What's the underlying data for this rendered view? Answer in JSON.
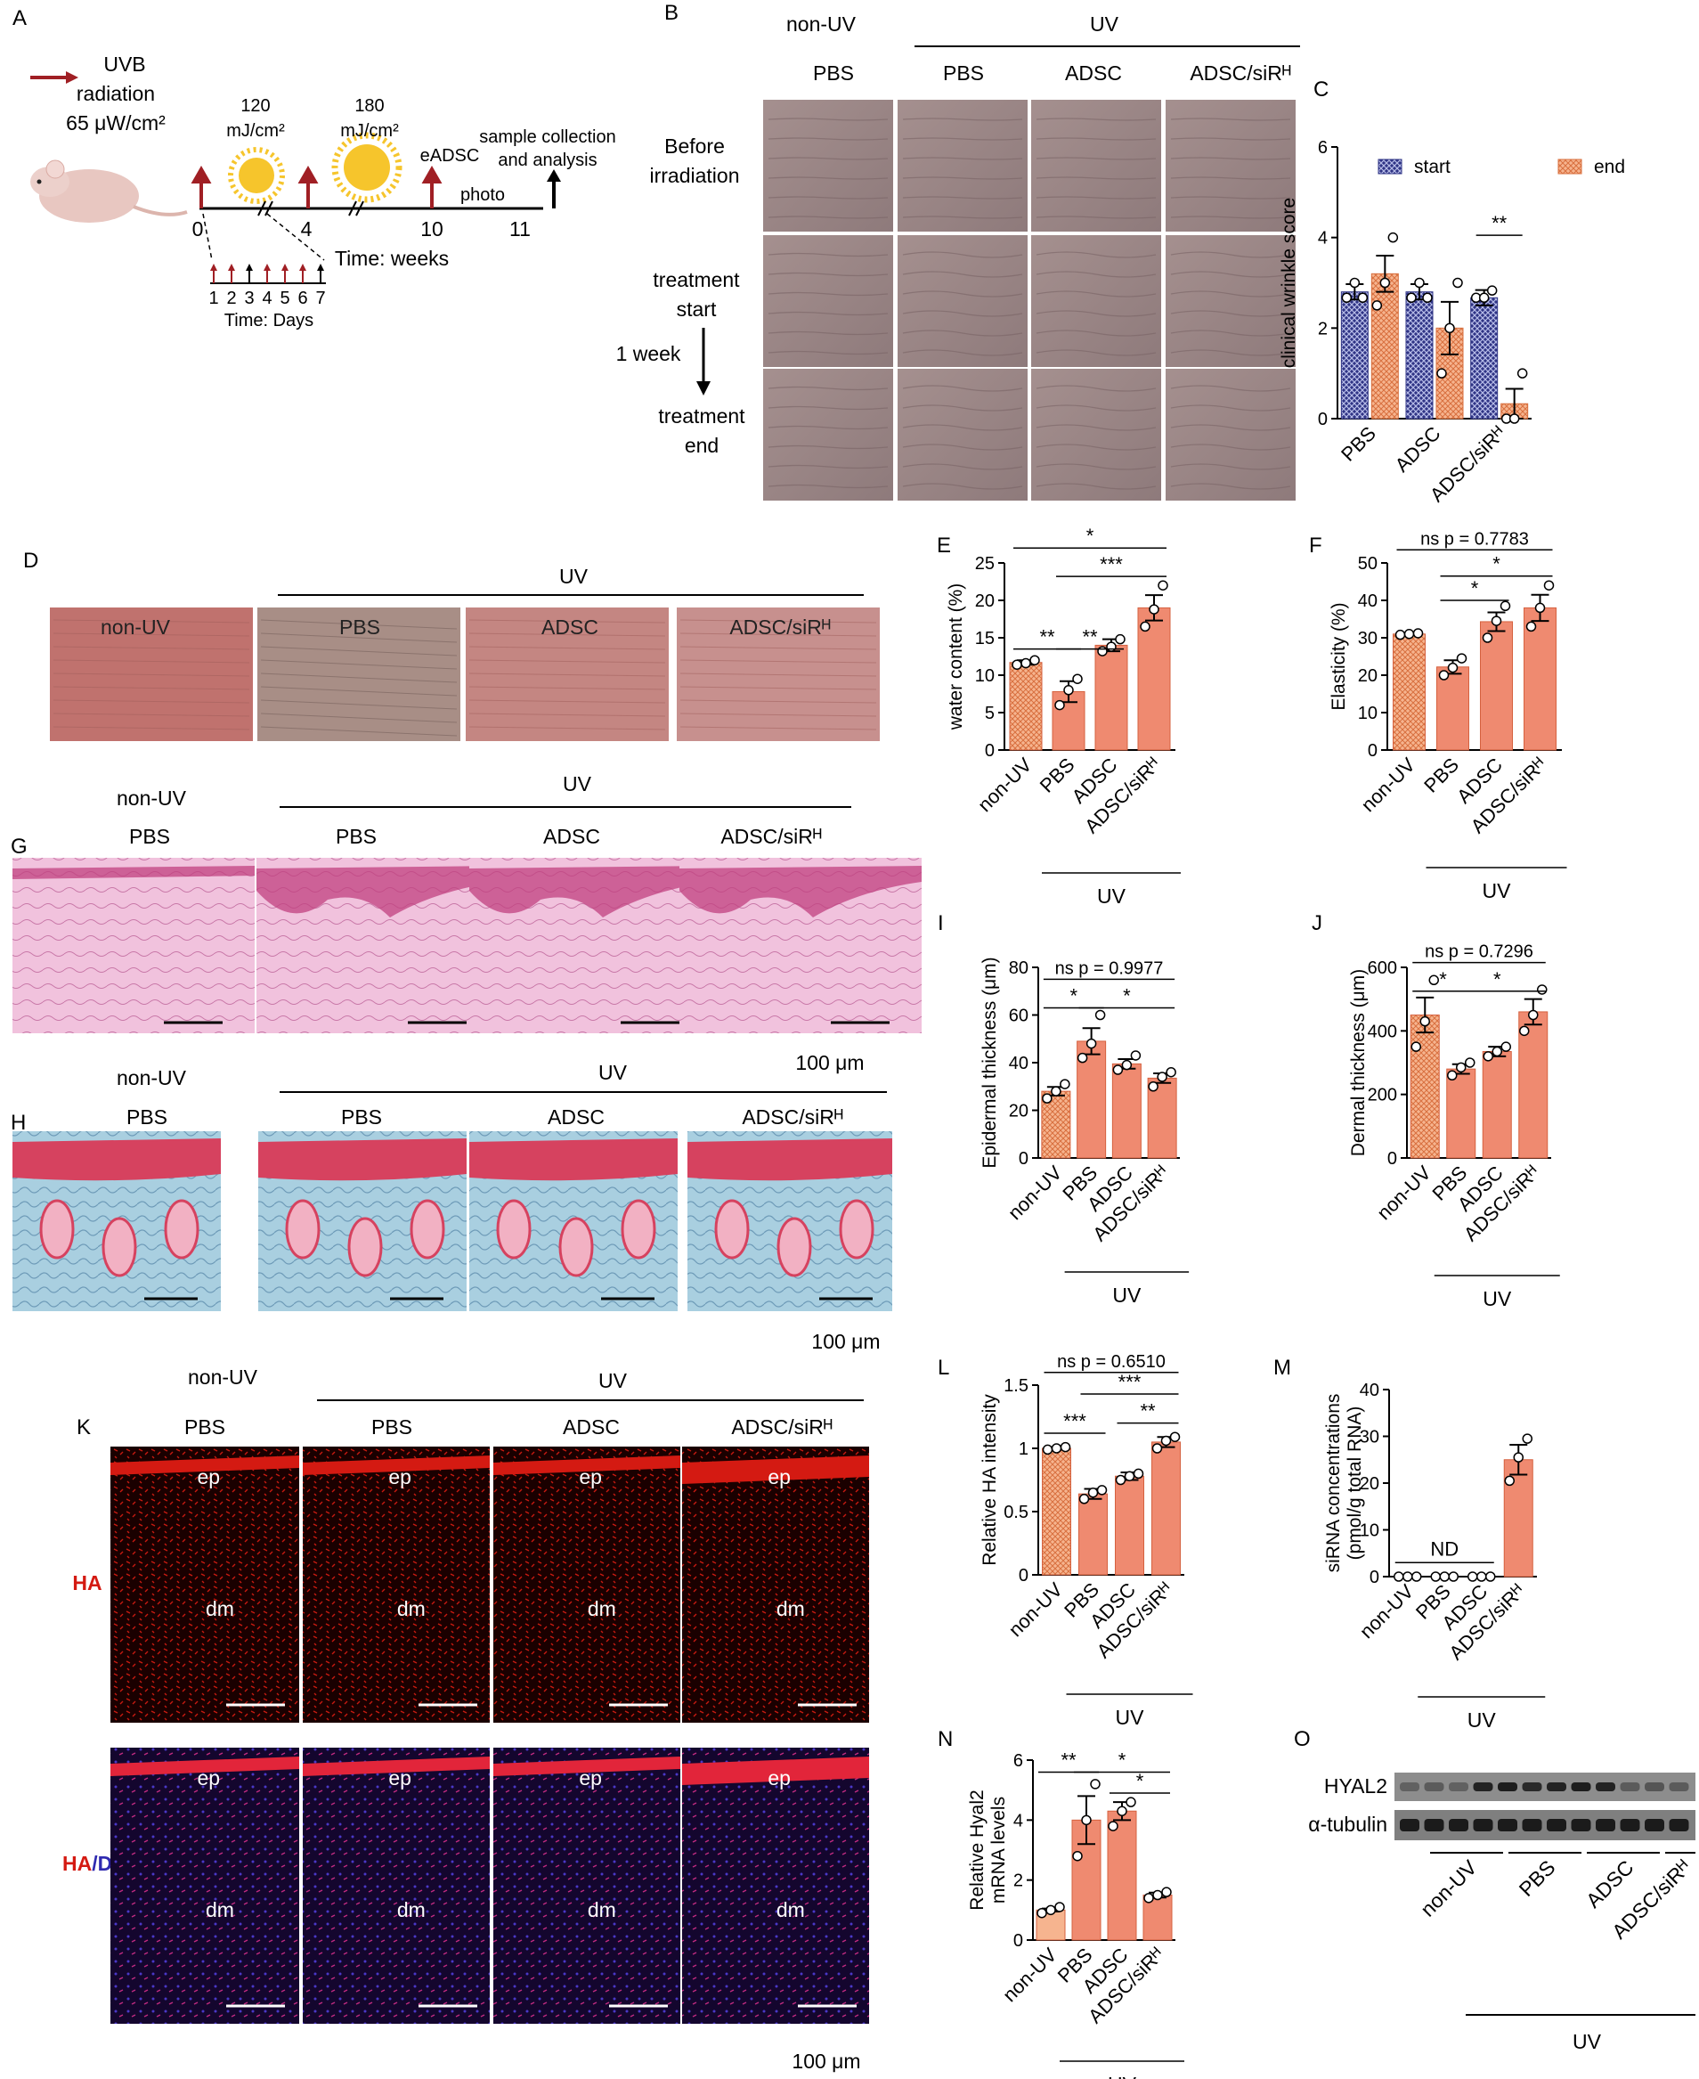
{
  "colors": {
    "salmon": "#ef8a70",
    "light_salmon": "#f6b48f",
    "navy": "#2f3485",
    "uv_arrow": "#a01f24",
    "sun": "#f6c52c",
    "skin": "#9f8b8c",
    "he_pink": "#e9a6cf",
    "he_edge": "#c0407f",
    "masson_blue": "#9fc6d8",
    "masson_red": "#d6425f",
    "fluor_red": "#d41a12",
    "dapi_blue": "#4a38c8"
  },
  "panel_labels": {
    "A": "A",
    "B": "B",
    "C": "C",
    "D": "D",
    "E": "E",
    "F": "F",
    "G": "G",
    "H": "H",
    "I": "I",
    "J": "J",
    "K": "K",
    "L": "L",
    "M": "M",
    "N": "N",
    "O": "O"
  },
  "panel_a": {
    "uvb_line1": "UVB",
    "uvb_line2": "radiation",
    "uvb_line3": "65 μW/cm²",
    "dose1_line1": "120",
    "dose1_line2": "mJ/cm²",
    "dose2_line1": "180",
    "dose2_line2": "mJ/cm²",
    "eadsc": "eADSC",
    "sample_line1": "sample collection",
    "sample_line2": "and analysis",
    "photo": "photo",
    "t0": "0",
    "t4": "4",
    "t10": "10",
    "t11": "11",
    "time_weeks": "Time: weeks",
    "days": [
      "1",
      "2",
      "3",
      "4",
      "5",
      "6",
      "7"
    ],
    "time_days": "Time: Days",
    "icons": [
      "mouse-icon",
      "sun-icon",
      "uv-arrow-icon"
    ]
  },
  "panel_b": {
    "non_uv": "non-UV",
    "uv": "UV",
    "cols": [
      "PBS",
      "PBS",
      "ADSC",
      "ADSC/siRᴴ"
    ],
    "rows": [
      {
        "line1": "Before",
        "line2": "irradiation"
      },
      {
        "line1": "treatment",
        "line2": "start"
      },
      {
        "line1": "treatment",
        "line2": "end"
      }
    ],
    "one_week": "1 week"
  },
  "panel_d": {
    "uv": "UV",
    "cols": [
      "non-UV",
      "PBS",
      "ADSC",
      "ADSC/siRᴴ"
    ]
  },
  "panel_g": {
    "non_uv": "non-UV",
    "uv": "UV",
    "cols": [
      "PBS",
      "PBS",
      "ADSC",
      "ADSC/siRᴴ"
    ],
    "scale": "100 μm"
  },
  "panel_h": {
    "non_uv": "non-UV",
    "uv": "UV",
    "cols": [
      "PBS",
      "PBS",
      "ADSC",
      "ADSC/siRᴴ"
    ],
    "scale": "100 μm"
  },
  "panel_k": {
    "non_uv": "non-UV",
    "uv": "UV",
    "cols": [
      "PBS",
      "PBS",
      "ADSC",
      "ADSC/siRᴴ"
    ],
    "row1": "HA",
    "row2_a": "HA",
    "row2_b": "/DAPI",
    "ep": "ep",
    "dm": "dm",
    "scale": "100 μm"
  },
  "panel_o": {
    "rows": [
      "HYAL2",
      "α-tubulin"
    ],
    "groups": [
      "non-UV",
      "PBS",
      "ADSC",
      "ADSC/siRᴴ"
    ],
    "uv": "UV"
  },
  "chart_data": [
    {
      "id": "C",
      "type": "bar",
      "ylabel": "clinical wrinkle score",
      "ylim": [
        0,
        6
      ],
      "yticks": [
        0,
        2,
        4,
        6
      ],
      "categories": [
        "PBS",
        "ADSC",
        "ADSC/siRᴴ"
      ],
      "series": [
        {
          "name": "start",
          "values": [
            2.8,
            2.8,
            2.67
          ],
          "errors": [
            0.17,
            0.17,
            0.17
          ],
          "points": [
            [
              2.67,
              3.0,
              2.67
            ],
            [
              2.67,
              3.0,
              2.67
            ],
            [
              2.67,
              2.67,
              2.83
            ]
          ]
        },
        {
          "name": "end",
          "values": [
            3.2,
            2.0,
            0.33
          ],
          "errors": [
            0.4,
            0.58,
            0.33
          ],
          "points": [
            [
              2.5,
              3.0,
              4.0
            ],
            [
              1.0,
              2.0,
              3.0
            ],
            [
              0.0,
              0.0,
              1.0
            ]
          ]
        }
      ],
      "annotations": [
        {
          "text": "**",
          "between": [
            2,
            2
          ]
        }
      ]
    },
    {
      "id": "E",
      "type": "bar",
      "ylabel": "water content (%)",
      "ylim": [
        0,
        25
      ],
      "yticks": [
        0,
        5,
        10,
        15,
        20,
        25
      ],
      "categories": [
        "non-UV",
        "PBS",
        "ADSC",
        "ADSC/siRᴴ"
      ],
      "values": [
        11.7,
        7.8,
        14.0,
        19.0
      ],
      "errors": [
        0.3,
        1.4,
        0.8,
        1.7
      ],
      "points": [
        [
          11.4,
          11.6,
          12.0
        ],
        [
          6.0,
          8.0,
          9.5
        ],
        [
          13.2,
          13.8,
          14.8
        ],
        [
          16.5,
          18.8,
          22.0
        ]
      ],
      "bracket_label": "UV",
      "annotations": [
        {
          "text": "**",
          "from": 0,
          "to": 1,
          "y": 13.5
        },
        {
          "text": "**",
          "from": 1,
          "to": 2,
          "y": 13.5
        },
        {
          "text": "***",
          "from": 1,
          "to": 3,
          "y": 23.2
        },
        {
          "text": "*",
          "from": 0,
          "to": 3,
          "y": 27.0
        }
      ]
    },
    {
      "id": "F",
      "type": "bar",
      "ylabel": "Elasticity (%)",
      "ylim": [
        0,
        50
      ],
      "yticks": [
        0,
        10,
        20,
        30,
        40,
        50
      ],
      "categories": [
        "non-UV",
        "PBS",
        "ADSC",
        "ADSC/siRᴴ"
      ],
      "values": [
        31.0,
        22.2,
        34.3,
        38.0
      ],
      "errors": [
        0.3,
        1.8,
        2.5,
        3.5
      ],
      "points": [
        [
          30.8,
          31.0,
          31.2
        ],
        [
          20.0,
          22.0,
          24.5
        ],
        [
          30.0,
          34.5,
          38.5
        ],
        [
          33.0,
          38.0,
          44.0
        ]
      ],
      "bracket_label": "UV",
      "annotations": [
        {
          "text": "*",
          "from": 1,
          "to": 2,
          "y": 40.0
        },
        {
          "text": "*",
          "from": 1,
          "to": 3,
          "y": 46.5
        },
        {
          "text": "ns p = 0.7783",
          "from": 0,
          "to": 3,
          "y": 53.5
        }
      ]
    },
    {
      "id": "I",
      "type": "bar",
      "ylabel": "Epidermal thickness (μm)",
      "ylim": [
        0,
        80
      ],
      "yticks": [
        0,
        20,
        40,
        60,
        80
      ],
      "categories": [
        "non-UV",
        "PBS",
        "ADSC",
        "ADSC/siRᴴ"
      ],
      "values": [
        28.0,
        49.0,
        39.5,
        33.5
      ],
      "errors": [
        1.8,
        5.5,
        2.0,
        2.0
      ],
      "points": [
        [
          25.0,
          28.0,
          31.0
        ],
        [
          42.0,
          48.0,
          60.0
        ],
        [
          37.0,
          39.0,
          43.0
        ],
        [
          30.0,
          34.0,
          36.0
        ]
      ],
      "bracket_label": "UV",
      "annotations": [
        {
          "text": "*",
          "from": 0,
          "to": 1,
          "y": 63.0
        },
        {
          "text": "*",
          "from": 1,
          "to": 3,
          "y": 63.0
        },
        {
          "text": "ns p = 0.9977",
          "from": 0,
          "to": 3,
          "y": 75.0
        }
      ]
    },
    {
      "id": "J",
      "type": "bar",
      "ylabel": "Dermal thickness (μm)",
      "ylim": [
        0,
        600
      ],
      "yticks": [
        0,
        200,
        400,
        600
      ],
      "categories": [
        "non-UV",
        "PBS",
        "ADSC",
        "ADSC/siRᴴ"
      ],
      "values": [
        450,
        280,
        335,
        460
      ],
      "errors": [
        55,
        15,
        15,
        40
      ],
      "points": [
        [
          350,
          430,
          560
        ],
        [
          260,
          285,
          300
        ],
        [
          320,
          335,
          350
        ],
        [
          400,
          450,
          530
        ]
      ],
      "bracket_label": "UV",
      "annotations": [
        {
          "text": "*",
          "from": 0,
          "to": 1,
          "y": 525
        },
        {
          "text": "*",
          "from": 1,
          "to": 3,
          "y": 525
        },
        {
          "text": "ns p = 0.7296",
          "from": 0,
          "to": 3,
          "y": 615
        }
      ]
    },
    {
      "id": "L",
      "type": "bar",
      "ylabel": "Relative HA intensity",
      "ylim": [
        0,
        1.5
      ],
      "yticks": [
        0,
        0.5,
        1.0,
        1.5
      ],
      "categories": [
        "non-UV",
        "PBS",
        "ADSC",
        "ADSC/siRᴴ"
      ],
      "values": [
        1.0,
        0.64,
        0.78,
        1.05
      ],
      "errors": [
        0.01,
        0.04,
        0.03,
        0.04
      ],
      "points": [
        [
          0.99,
          1.0,
          1.01
        ],
        [
          0.6,
          0.65,
          0.67
        ],
        [
          0.75,
          0.78,
          0.8
        ],
        [
          1.0,
          1.06,
          1.09
        ]
      ],
      "bracket_label": "UV",
      "annotations": [
        {
          "text": "***",
          "from": 0,
          "to": 1,
          "y": 1.12
        },
        {
          "text": "**",
          "from": 2,
          "to": 3,
          "y": 1.2
        },
        {
          "text": "***",
          "from": 1,
          "to": 3,
          "y": 1.43
        },
        {
          "text": "ns p = 0.6510",
          "from": 0,
          "to": 3,
          "y": 1.6
        }
      ]
    },
    {
      "id": "M",
      "type": "bar",
      "ylabel": "siRNA concentrations (pmol/g total RNA)",
      "ylim": [
        0,
        40
      ],
      "yticks": [
        0,
        10,
        20,
        30,
        40
      ],
      "categories": [
        "non-UV",
        "PBS",
        "ADSC",
        "ADSC/siRᴴ"
      ],
      "values": [
        0,
        0,
        0,
        25.0
      ],
      "errors": [
        0,
        0,
        0,
        3.2
      ],
      "points": [
        [
          0,
          0,
          0
        ],
        [
          0,
          0,
          0
        ],
        [
          0,
          0,
          0
        ],
        [
          20.5,
          25.5,
          29.5
        ]
      ],
      "bracket_label": "UV",
      "annotations": [
        {
          "text": "ND",
          "from": 0,
          "to": 2,
          "y": 3.0
        }
      ]
    },
    {
      "id": "N",
      "type": "bar",
      "ylabel": "Relative Hyal2 mRNA levels",
      "ylim": [
        0,
        6
      ],
      "yticks": [
        0,
        2,
        4,
        6
      ],
      "categories": [
        "non-UV",
        "PBS",
        "ADSC",
        "ADSC/siRᴴ"
      ],
      "values": [
        1.0,
        4.0,
        4.3,
        1.5
      ],
      "errors": [
        0.05,
        0.8,
        0.3,
        0.08
      ],
      "points": [
        [
          0.9,
          1.0,
          1.1
        ],
        [
          2.8,
          4.0,
          5.2
        ],
        [
          3.8,
          4.3,
          4.6
        ],
        [
          1.4,
          1.5,
          1.6
        ]
      ],
      "bracket_label": "UV",
      "annotations": [
        {
          "text": "**",
          "from": 0,
          "to": 1,
          "y": 5.6
        },
        {
          "text": "*",
          "from": 2,
          "to": 3,
          "y": 4.9
        },
        {
          "text": "*",
          "from": 1,
          "to": 3,
          "y": 5.6
        }
      ]
    }
  ]
}
